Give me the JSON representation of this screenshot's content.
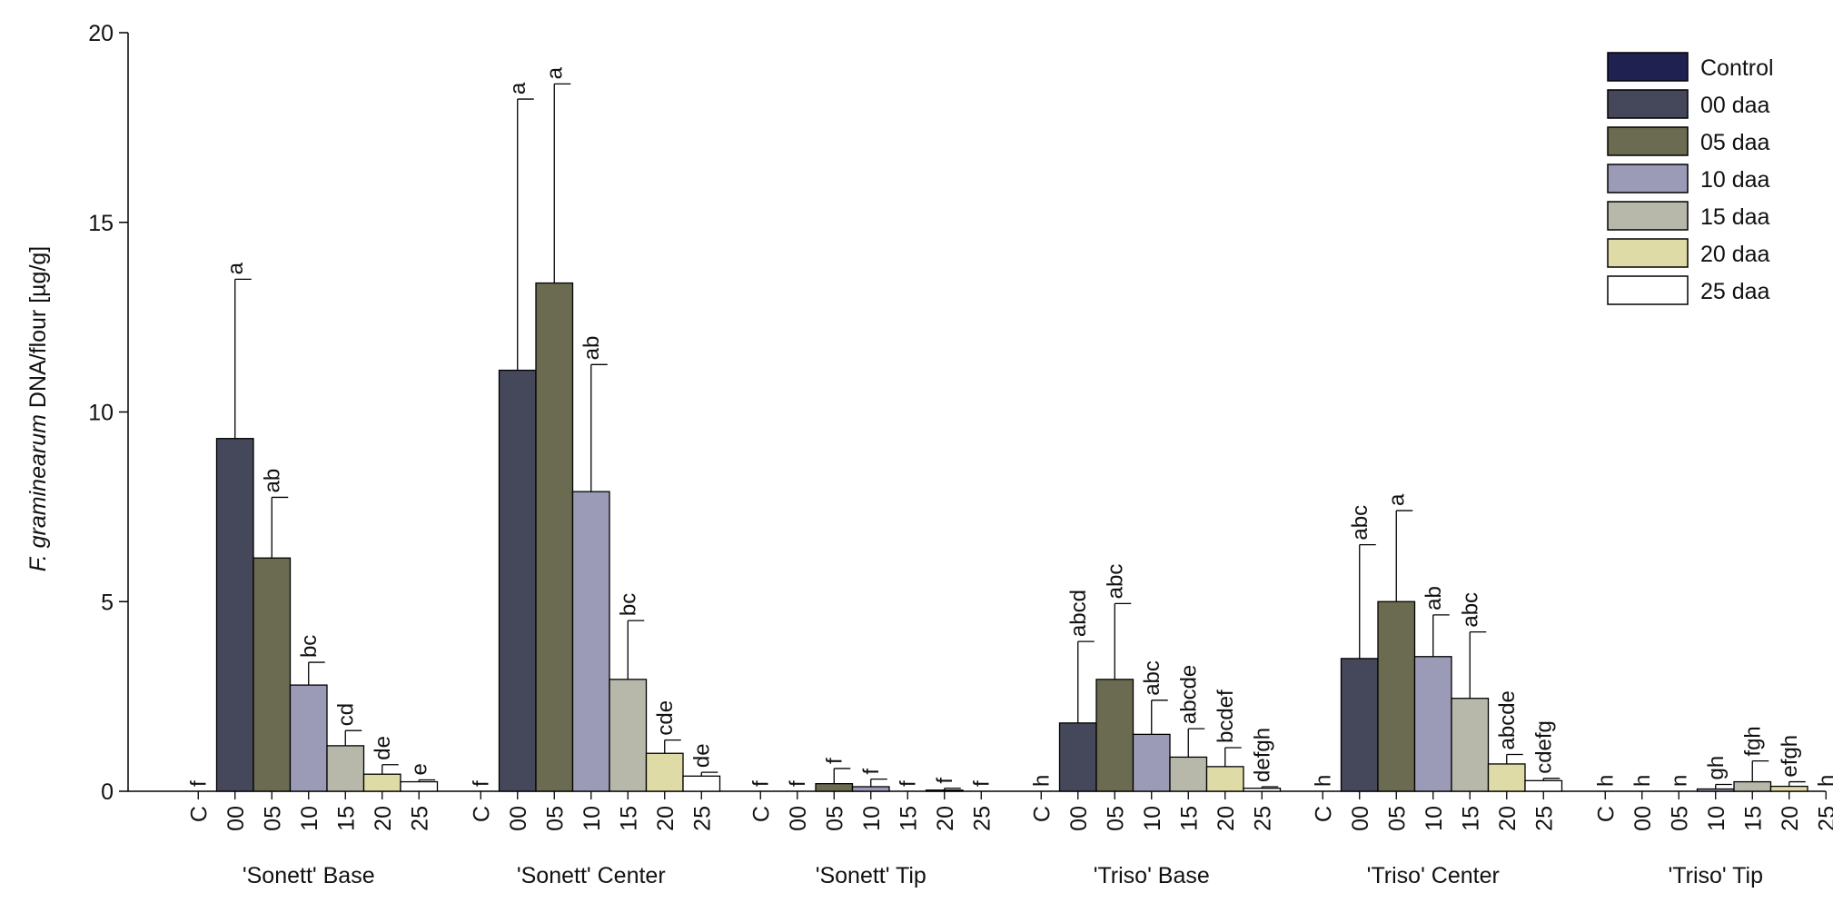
{
  "chart_data": {
    "type": "bar",
    "title": "",
    "ylabel_italic": "F. graminearum",
    "ylabel_rest": " DNA/flour [µg/g]",
    "xlabel": "",
    "ylim": [
      0,
      20
    ],
    "yticks": [
      0,
      5,
      10,
      15,
      20
    ],
    "ytick_labels": [
      "0",
      "5",
      "10",
      "15",
      "20"
    ],
    "grid": false,
    "legend_position": "top-right",
    "categories": [
      "C",
      "00",
      "05",
      "10",
      "15",
      "20",
      "25"
    ],
    "series": [
      {
        "name": "Control",
        "color": "#1f2250"
      },
      {
        "name": "00 daa",
        "color": "#45475a"
      },
      {
        "name": "05 daa",
        "color": "#6b6b52"
      },
      {
        "name": "10 daa",
        "color": "#9b9bb8"
      },
      {
        "name": "15 daa",
        "color": "#b8b8aa"
      },
      {
        "name": "20 daa",
        "color": "#dedba6"
      },
      {
        "name": "25 daa",
        "color": "#ffffff"
      }
    ],
    "groups": [
      {
        "name": "'Sonett' Base",
        "values": [
          0,
          9.3,
          6.15,
          2.8,
          1.2,
          0.45,
          0.25
        ],
        "errors": [
          0,
          4.2,
          1.6,
          0.6,
          0.4,
          0.25,
          0.05
        ],
        "letters": [
          "f",
          "a",
          "ab",
          "bc",
          "cd",
          "de",
          "e"
        ]
      },
      {
        "name": "'Sonett' Center",
        "values": [
          0,
          11.1,
          13.4,
          7.9,
          2.95,
          1.0,
          0.4
        ],
        "errors": [
          0,
          7.15,
          5.25,
          3.35,
          1.55,
          0.35,
          0.1
        ],
        "letters": [
          "f",
          "a",
          "a",
          "ab",
          "bc",
          "cde",
          "de"
        ]
      },
      {
        "name": "'Sonett' Tip",
        "values": [
          0,
          0,
          0.2,
          0.12,
          0,
          0.03,
          0
        ],
        "errors": [
          0,
          0,
          0.4,
          0.2,
          0,
          0.05,
          0
        ],
        "letters": [
          "f",
          "f",
          "f",
          "f",
          "f",
          "f",
          "f"
        ]
      },
      {
        "name": "'Triso' Base",
        "values": [
          0,
          1.8,
          2.95,
          1.5,
          0.9,
          0.65,
          0.08
        ],
        "errors": [
          0,
          2.15,
          2.0,
          0.9,
          0.75,
          0.5,
          0.04
        ],
        "letters": [
          "h",
          "abcd",
          "abc",
          "abc",
          "abcde",
          "bcdef",
          "defgh"
        ]
      },
      {
        "name": "'Triso' Center",
        "values": [
          0,
          3.5,
          5.0,
          3.55,
          2.45,
          0.72,
          0.28
        ],
        "errors": [
          0,
          3.0,
          2.4,
          1.1,
          1.75,
          0.25,
          0.06
        ],
        "letters": [
          "h",
          "abc",
          "a",
          "ab",
          "abc",
          "abcde",
          "cdefg"
        ]
      },
      {
        "name": "'Triso' Tip",
        "values": [
          0,
          0,
          0,
          0.06,
          0.25,
          0.13,
          0
        ],
        "errors": [
          0,
          0,
          0,
          0.12,
          0.55,
          0.12,
          0
        ],
        "letters": [
          "h",
          "h",
          "n",
          "gh",
          "fgh",
          "efgh",
          "h"
        ]
      }
    ]
  }
}
